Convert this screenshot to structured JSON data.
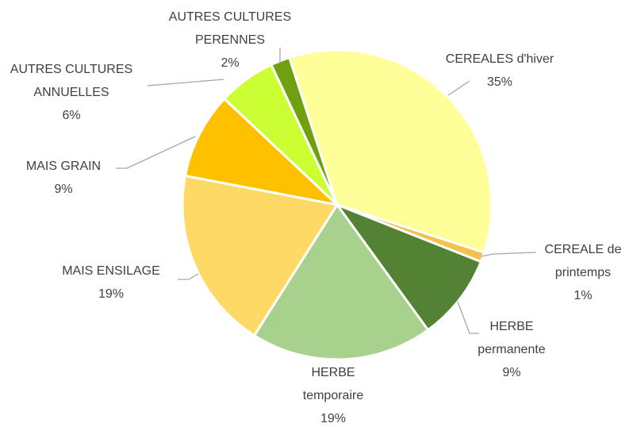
{
  "chart_data": {
    "type": "pie",
    "categories": [
      "CEREALES d'hiver",
      "CEREALE de printemps",
      "HERBE permanente",
      "HERBE temporaire",
      "MAIS ENSILAGE",
      "MAIS GRAIN",
      "AUTRES CULTURES ANNUELLES",
      "AUTRES CULTURES PERENNES"
    ],
    "values": [
      35,
      1,
      9,
      19,
      19,
      9,
      6,
      2
    ],
    "value_labels": [
      "35%",
      "1%",
      "9%",
      "19%",
      "19%",
      "9%",
      "6%",
      "2%"
    ],
    "colors": [
      "#ffff99",
      "#f2c14e",
      "#548235",
      "#a9d18e",
      "#ffd966",
      "#ffc000",
      "#ccff33",
      "#70a010"
    ]
  }
}
